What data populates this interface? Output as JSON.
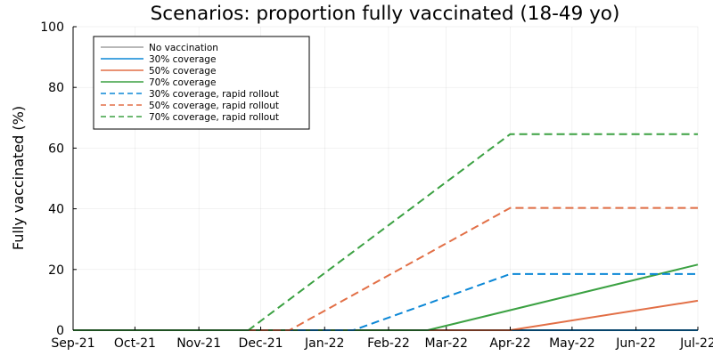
{
  "chart_data": {
    "type": "line",
    "title": "Scenarios: proportion fully vaccinated (18-49 yo)",
    "xlabel": "",
    "ylabel": "Fully vaccinated (%)",
    "xlim": [
      "2021-09-01",
      "2022-07-01"
    ],
    "ylim": [
      0,
      100
    ],
    "x_ticks": [
      {
        "date": "2021-09-01",
        "label": "Sep-21"
      },
      {
        "date": "2021-10-01",
        "label": "Oct-21"
      },
      {
        "date": "2021-11-01",
        "label": "Nov-21"
      },
      {
        "date": "2021-12-01",
        "label": "Dec-21"
      },
      {
        "date": "2022-01-01",
        "label": "Jan-22"
      },
      {
        "date": "2022-02-01",
        "label": "Feb-22"
      },
      {
        "date": "2022-03-01",
        "label": "Mar-22"
      },
      {
        "date": "2022-04-01",
        "label": "Apr-22"
      },
      {
        "date": "2022-05-01",
        "label": "May-22"
      },
      {
        "date": "2022-06-01",
        "label": "Jun-22"
      },
      {
        "date": "2022-07-01",
        "label": "Jul-22"
      }
    ],
    "y_ticks": [
      0,
      20,
      40,
      60,
      80,
      100
    ],
    "grid": true,
    "legend": "top-left",
    "series": [
      {
        "name": "No vaccination",
        "color": "#a0a0a0",
        "style": "solid",
        "points": [
          [
            "2021-09-01",
            0
          ],
          [
            "2022-07-01",
            0
          ]
        ]
      },
      {
        "name": "30% coverage",
        "color": "#0b87d6",
        "style": "solid",
        "points": [
          [
            "2021-09-01",
            0
          ],
          [
            "2022-07-01",
            0
          ]
        ]
      },
      {
        "name": "50% coverage",
        "color": "#e26f46",
        "style": "solid",
        "points": [
          [
            "2021-09-01",
            0
          ],
          [
            "2022-04-01",
            0
          ],
          [
            "2022-07-01",
            9.7
          ]
        ]
      },
      {
        "name": "70% coverage",
        "color": "#3ba142",
        "style": "solid",
        "points": [
          [
            "2021-09-01",
            0
          ],
          [
            "2022-02-20",
            0
          ],
          [
            "2022-07-01",
            21.6
          ]
        ]
      },
      {
        "name": "30% coverage, rapid rollout",
        "color": "#0b87d6",
        "style": "dashed",
        "points": [
          [
            "2021-09-01",
            0
          ],
          [
            "2022-01-15",
            0
          ],
          [
            "2022-04-01",
            18.5
          ],
          [
            "2022-07-01",
            18.5
          ]
        ]
      },
      {
        "name": "50% coverage, rapid rollout",
        "color": "#e26f46",
        "style": "dashed",
        "points": [
          [
            "2021-09-01",
            0
          ],
          [
            "2021-12-15",
            0
          ],
          [
            "2022-04-01",
            40.3
          ],
          [
            "2022-07-01",
            40.3
          ]
        ]
      },
      {
        "name": "70% coverage, rapid rollout",
        "color": "#3ba142",
        "style": "dashed",
        "points": [
          [
            "2021-09-01",
            0
          ],
          [
            "2021-11-25",
            0
          ],
          [
            "2022-04-01",
            64.6
          ],
          [
            "2022-07-01",
            64.6
          ]
        ]
      }
    ]
  }
}
